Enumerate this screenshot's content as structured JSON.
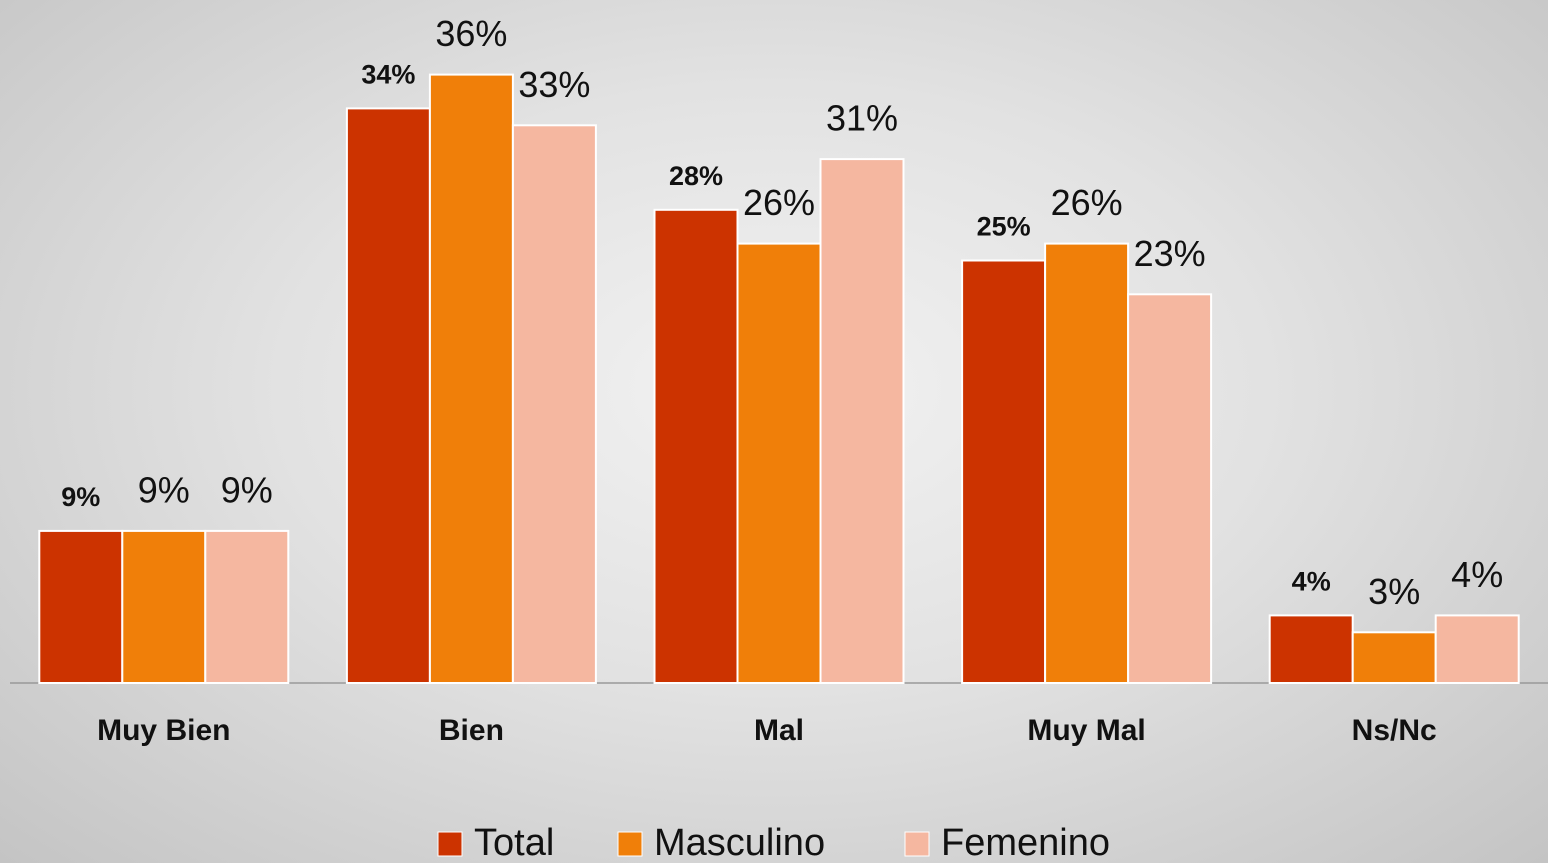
{
  "chart_data": {
    "type": "bar",
    "categories": [
      "Muy Bien",
      "Bien",
      "Mal",
      "Muy Mal",
      "Ns/Nc"
    ],
    "series": [
      {
        "name": "Total",
        "color": "#cc3300",
        "values": [
          9,
          34,
          28,
          25,
          4
        ],
        "value_labels": [
          "9%",
          "34%",
          "28%",
          "25%",
          "4%"
        ]
      },
      {
        "name": "Masculino",
        "color": "#f07f09",
        "values": [
          9,
          36,
          26,
          26,
          3
        ],
        "value_labels": [
          "9%",
          "36%",
          "26%",
          "26%",
          "3%"
        ]
      },
      {
        "name": "Femenino",
        "color": "#f5b7a0",
        "values": [
          9,
          33,
          31,
          23,
          4
        ],
        "value_labels": [
          "9%",
          "33%",
          "31%",
          "23%",
          "4%"
        ]
      }
    ],
    "ylim": [
      0,
      40
    ],
    "legend": "bottom"
  }
}
